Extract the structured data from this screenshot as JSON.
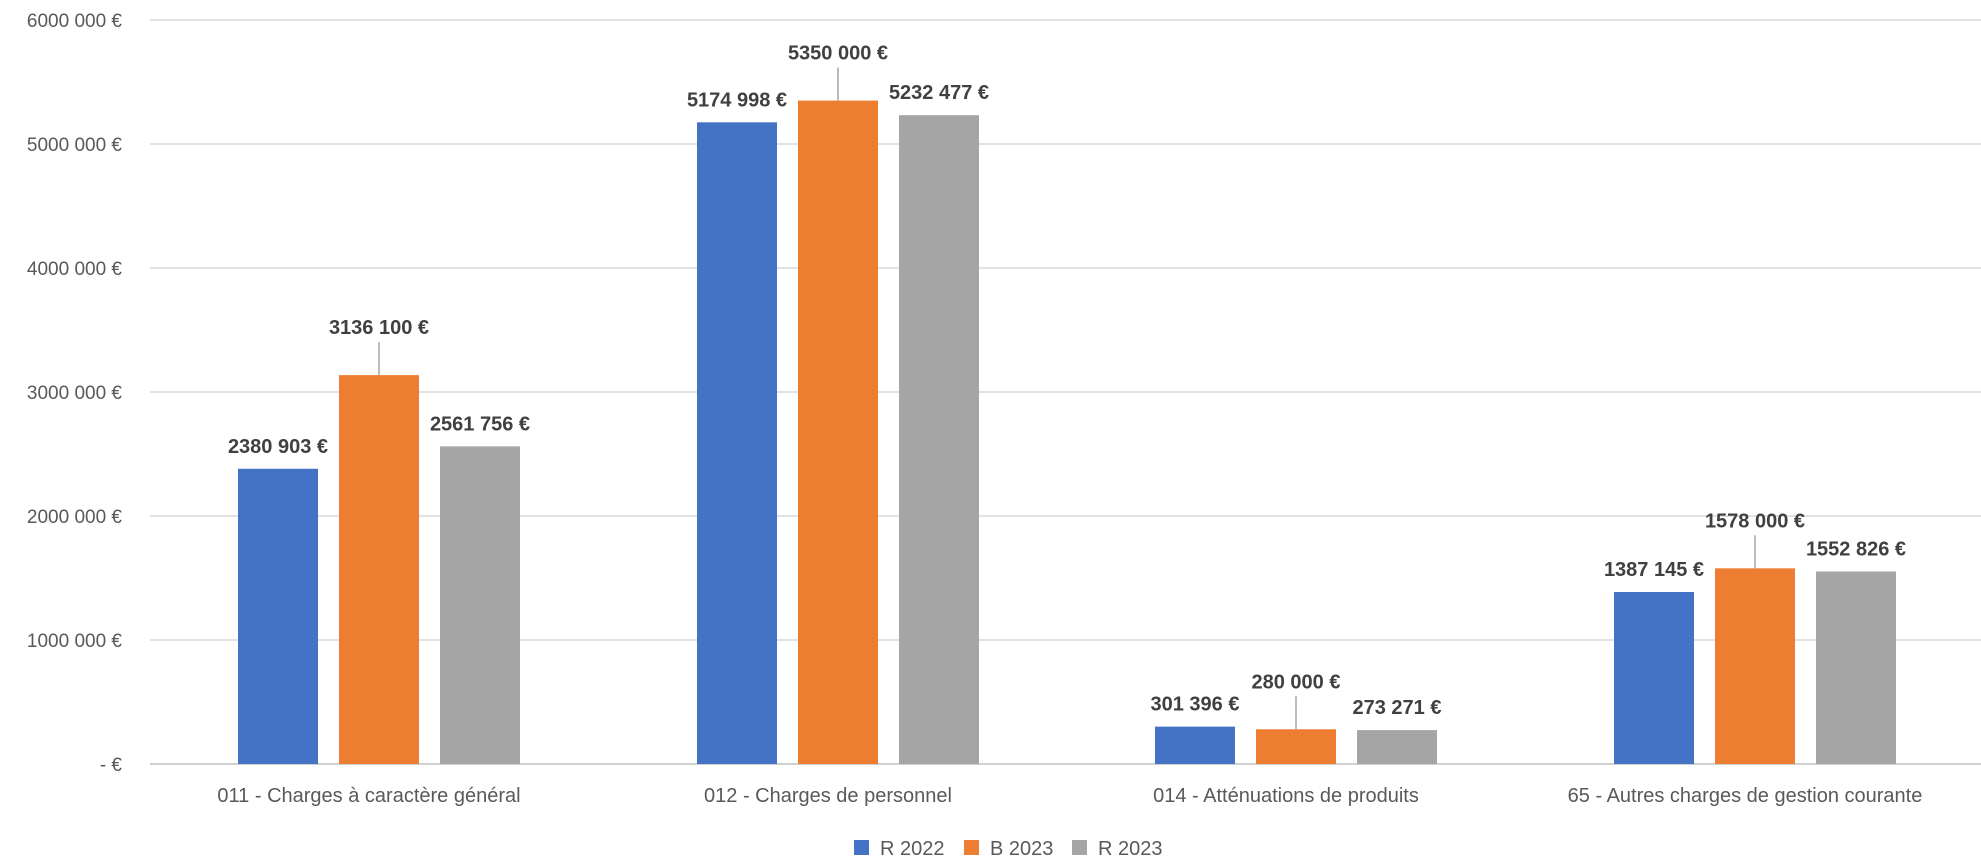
{
  "chart_data": {
    "type": "bar",
    "title": "",
    "xlabel": "",
    "ylabel": "",
    "categories": [
      "011 - Charges à caractère général",
      "012 - Charges de personnel",
      "014 - Atténuations de produits",
      "65 - Autres charges de gestion courante"
    ],
    "series": [
      {
        "name": "R 2022",
        "color": "#4472C4",
        "values": [
          2380903,
          5174998,
          301396,
          1387145
        ],
        "labels": [
          "2380 903 €",
          "5174 998 €",
          "301 396 €",
          "1387 145 €"
        ]
      },
      {
        "name": "B 2023",
        "color": "#ED7D31",
        "values": [
          3136100,
          5350000,
          280000,
          1578000
        ],
        "labels": [
          "3136 100 €",
          "5350 000 €",
          "280 000 €",
          "1578 000 €"
        ]
      },
      {
        "name": "R 2023",
        "color": "#A5A5A5",
        "values": [
          2561756,
          5232477,
          273271,
          1552826
        ],
        "labels": [
          "2561 756 €",
          "5232 477 €",
          "273 271 €",
          "1552 826 €"
        ]
      }
    ],
    "ylim": [
      0,
      6000000
    ],
    "yticks": [
      0,
      1000000,
      2000000,
      3000000,
      4000000,
      5000000,
      6000000
    ],
    "ytick_labels": [
      "-  €",
      "1000 000 €",
      "2000 000 €",
      "3000 000 €",
      "4000 000 €",
      "5000 000 €",
      "6000 000 €"
    ],
    "grid": true,
    "legend_position": "bottom"
  }
}
